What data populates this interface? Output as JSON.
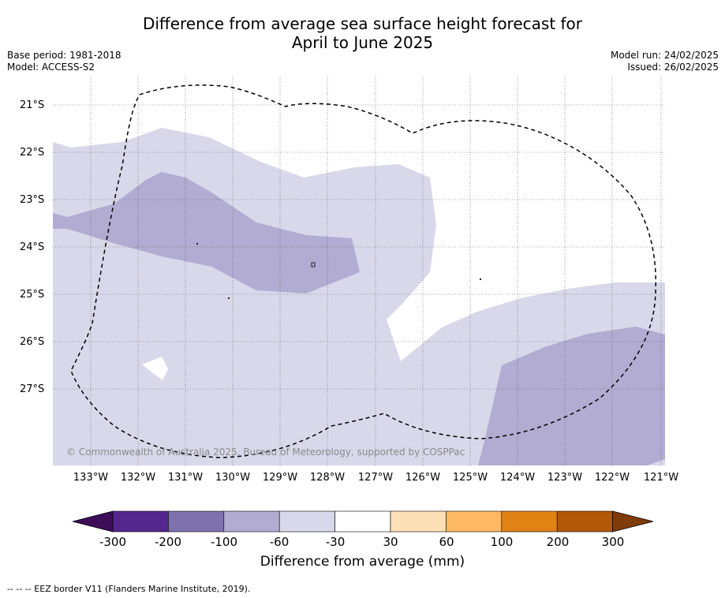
{
  "title_line1": "Difference from average sea surface height forecast for",
  "title_line2": "April to June 2025",
  "base_period": "Base period: 1981-2018",
  "model": "Model: ACCESS-S2",
  "model_run": "Model run: 24/02/2025",
  "issued": "Issued: 26/02/2025",
  "lat_labels": [
    "21°S",
    "22°S",
    "23°S",
    "24°S",
    "25°S",
    "26°S",
    "27°S"
  ],
  "lon_labels": [
    "133°W",
    "132°W",
    "131°W",
    "130°W",
    "129°W",
    "128°W",
    "127°W",
    "126°W",
    "125°W",
    "124°W",
    "123°W",
    "122°W",
    "121°W"
  ],
  "copyright": "© Commonwealth of Australia 2025, Bureau of Meteorology, supported by COSPPac",
  "colorbar": {
    "ticks": [
      "-300",
      "-200",
      "-100",
      "-60",
      "-30",
      "30",
      "60",
      "100",
      "200",
      "300"
    ],
    "title": "Difference from average (mm)",
    "colors": [
      "#3d0d5a",
      "#54278f",
      "#7e72ae",
      "#b2abd2",
      "#d8d8ea",
      "#ffffff",
      "#fee0b6",
      "#fdb863",
      "#e08214",
      "#b35806",
      "#7f3b08"
    ]
  },
  "footer": "-- -- -- EEZ border V11 (Flanders Marine Institute, 2019)."
}
